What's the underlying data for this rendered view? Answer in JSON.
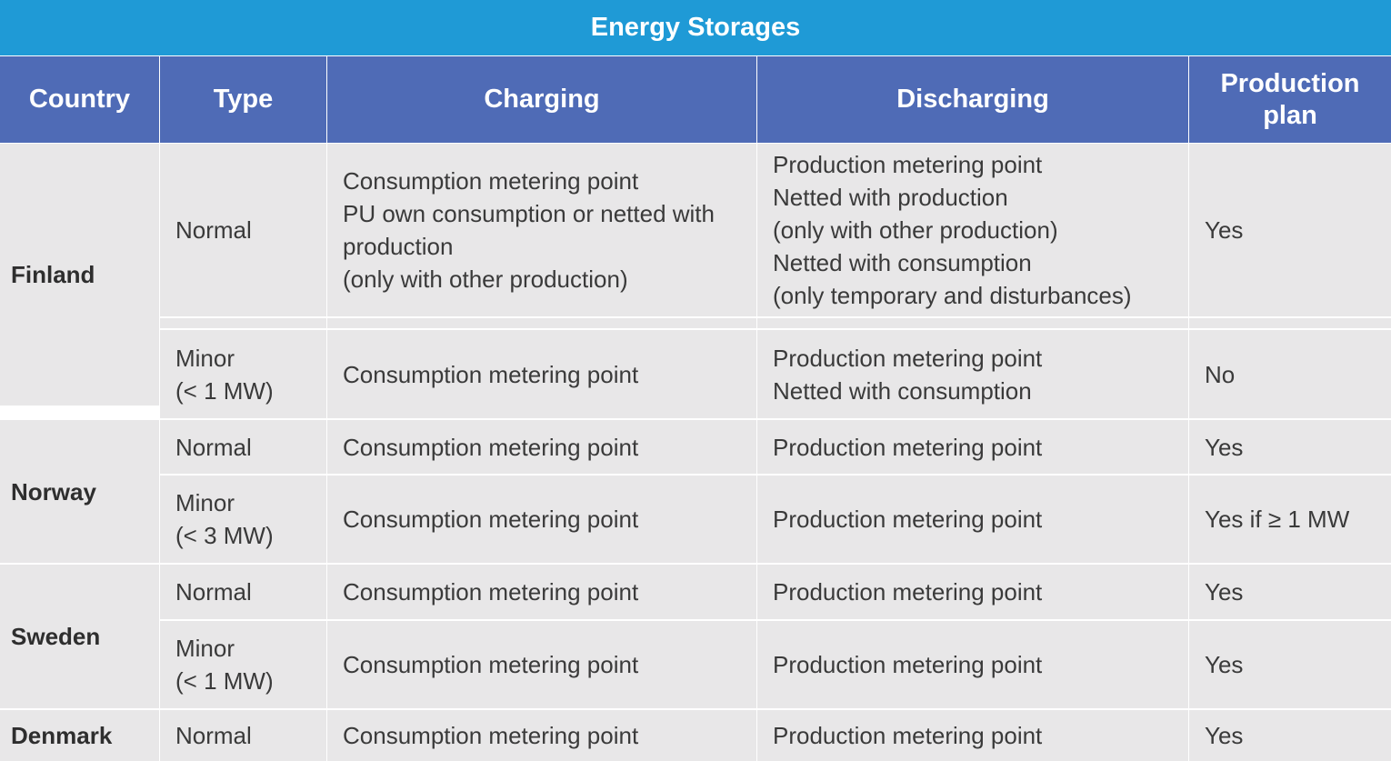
{
  "title": "Energy Storages",
  "headers": {
    "country": "Country",
    "type": "Type",
    "charging": "Charging",
    "discharging": "Discharging",
    "plan_line1": "Production",
    "plan_line2": "plan"
  },
  "countries": {
    "finland": "Finland",
    "norway": "Norway",
    "sweden": "Sweden",
    "denmark": "Denmark"
  },
  "rows": {
    "finland_normal": {
      "type": [
        "Normal"
      ],
      "charging": [
        "Consumption metering point",
        "PU own consumption or netted with",
        "production",
        "(only with other production)"
      ],
      "discharging": [
        "Production metering point",
        "Netted with production",
        "(only with other production)",
        "Netted with consumption",
        "(only temporary and disturbances)"
      ],
      "plan": "Yes"
    },
    "finland_minor": {
      "type": [
        "Minor",
        "(< 1 MW)"
      ],
      "charging": [
        "Consumption metering point"
      ],
      "discharging": [
        "Production metering point",
        "Netted with consumption"
      ],
      "plan": "No"
    },
    "norway_normal": {
      "type": [
        "Normal"
      ],
      "charging": [
        "Consumption metering point"
      ],
      "discharging": [
        "Production metering point"
      ],
      "plan": "Yes"
    },
    "norway_minor": {
      "type": [
        "Minor",
        "(< 3 MW)"
      ],
      "charging": [
        "Consumption metering point"
      ],
      "discharging": [
        "Production metering point"
      ],
      "plan": "Yes if ≥ 1 MW"
    },
    "sweden_normal": {
      "type": [
        "Normal"
      ],
      "charging": [
        "Consumption metering point"
      ],
      "discharging": [
        "Production metering point"
      ],
      "plan": "Yes"
    },
    "sweden_minor": {
      "type": [
        "Minor",
        "(< 1 MW)"
      ],
      "charging": [
        "Consumption metering point"
      ],
      "discharging": [
        "Production metering point"
      ],
      "plan": "Yes"
    },
    "denmark_normal": {
      "type": [
        "Normal"
      ],
      "charging": [
        "Consumption metering point"
      ],
      "discharging": [
        "Production metering point"
      ],
      "plan": "Yes"
    }
  }
}
